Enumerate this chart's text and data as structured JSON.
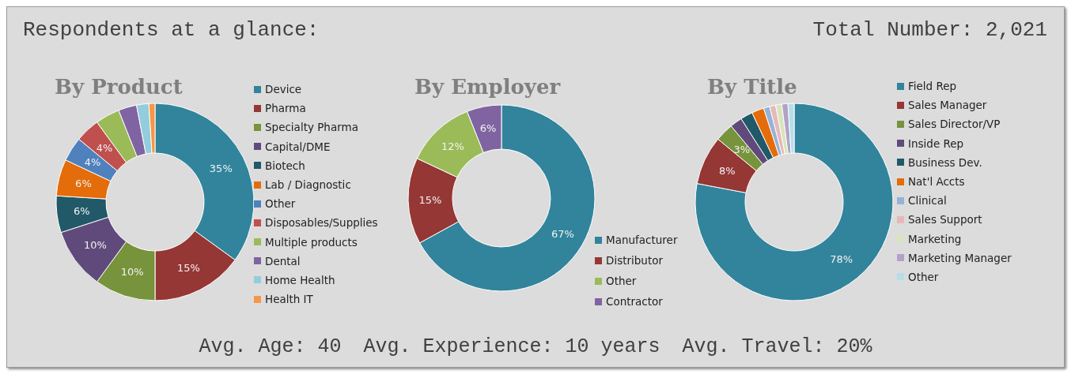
{
  "chart_data": [
    {
      "type": "other",
      "title": "Respondents at a glance:",
      "annotations": [
        "Total Number: 2,021"
      ]
    },
    {
      "type": "donut",
      "title": "By Product",
      "legend": "right",
      "categories": [
        "Device",
        "Pharma",
        "Specialty Pharma",
        "Capital/DME",
        "Biotech",
        "Lab / Diagnostic",
        "Other",
        "Disposables/Supplies",
        "Multiple products",
        "Dental",
        "Home Health",
        "Health IT"
      ],
      "values": [
        35,
        15,
        10,
        10,
        6,
        6,
        4,
        4,
        4,
        3,
        2,
        1
      ],
      "value_labels": [
        "35%",
        "15%",
        "10%",
        "10%",
        "6%",
        "6%",
        "4%",
        "4%",
        null,
        null,
        null,
        null
      ],
      "colors": [
        "#31849b",
        "#953735",
        "#77933c",
        "#604a7b",
        "#215968",
        "#e46c0a",
        "#4f81bd",
        "#c0504d",
        "#9bbb59",
        "#8064a2",
        "#93cddd",
        "#f79646"
      ]
    },
    {
      "type": "donut",
      "title": "By Employer",
      "legend": "bottom right",
      "categories": [
        "Manufacturer",
        "Distributor",
        "Other",
        "Contractor"
      ],
      "values": [
        67,
        15,
        12,
        6
      ],
      "value_labels": [
        "67%",
        "15%",
        "12%",
        "6%"
      ],
      "colors": [
        "#31849b",
        "#953735",
        "#9bbb59",
        "#8064a2"
      ]
    },
    {
      "type": "donut",
      "title": "By Title",
      "legend": "right",
      "categories": [
        "Field Rep",
        "Sales Manager",
        "Sales Director/VP",
        "Inside Rep",
        "Business Dev.",
        "Nat'l Accts",
        "Clinical",
        "Sales Support",
        "Marketing",
        "Marketing Manager",
        "Other"
      ],
      "values": [
        78,
        8,
        3,
        2,
        2,
        2,
        1,
        1,
        1,
        1,
        1
      ],
      "value_labels": [
        "78%",
        "8%",
        "3%",
        null,
        null,
        null,
        null,
        null,
        null,
        null,
        null
      ],
      "colors": [
        "#31849b",
        "#953735",
        "#77933c",
        "#604a7b",
        "#215968",
        "#e46c0a",
        "#95b3d7",
        "#e6b9b8",
        "#d7e4bd",
        "#b3a2c7",
        "#b7dee8"
      ]
    },
    {
      "type": "other",
      "annotations": [
        "Avg. Age: 40",
        "Avg. Experience: 10 years",
        "Avg. Travel: 20%"
      ]
    }
  ]
}
